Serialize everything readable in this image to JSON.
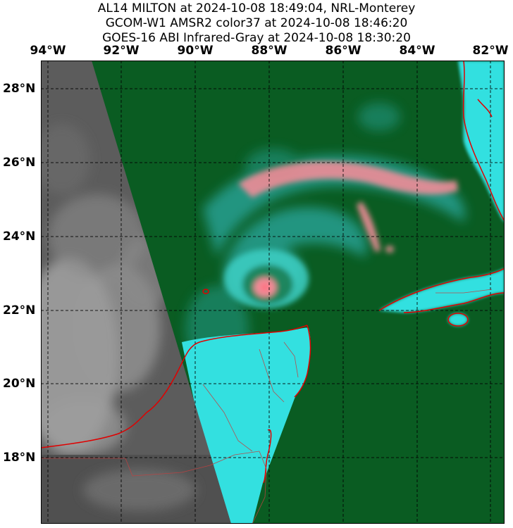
{
  "title": {
    "line1": "AL14 MILTON at 2024-10-08 18:49:04, NRL-Monterey",
    "line2": "GCOM-W1 AMSR2 color37 at 2024-10-08 18:46:20",
    "line3": "GOES-16 ABI Infrared-Gray at 2024-10-08 18:30:20"
  },
  "axes": {
    "longitude_labels": [
      "94°W",
      "92°W",
      "90°W",
      "88°W",
      "86°W",
      "84°W",
      "82°W"
    ],
    "latitude_labels": [
      "28°N",
      "26°N",
      "24°N",
      "22°N",
      "20°N",
      "18°N"
    ]
  },
  "colors": {
    "background_green": "#0a5c22",
    "land_cyan": "#33e0e0",
    "rain_pink": "#f08c98",
    "coastline_red": "#e00000",
    "ir_gray": "#5c5c5c"
  },
  "map": {
    "storm": "Hurricane Milton",
    "extent_lon": [
      -94.2,
      -81.8
    ],
    "extent_lat": [
      16.2,
      28.8
    ]
  }
}
